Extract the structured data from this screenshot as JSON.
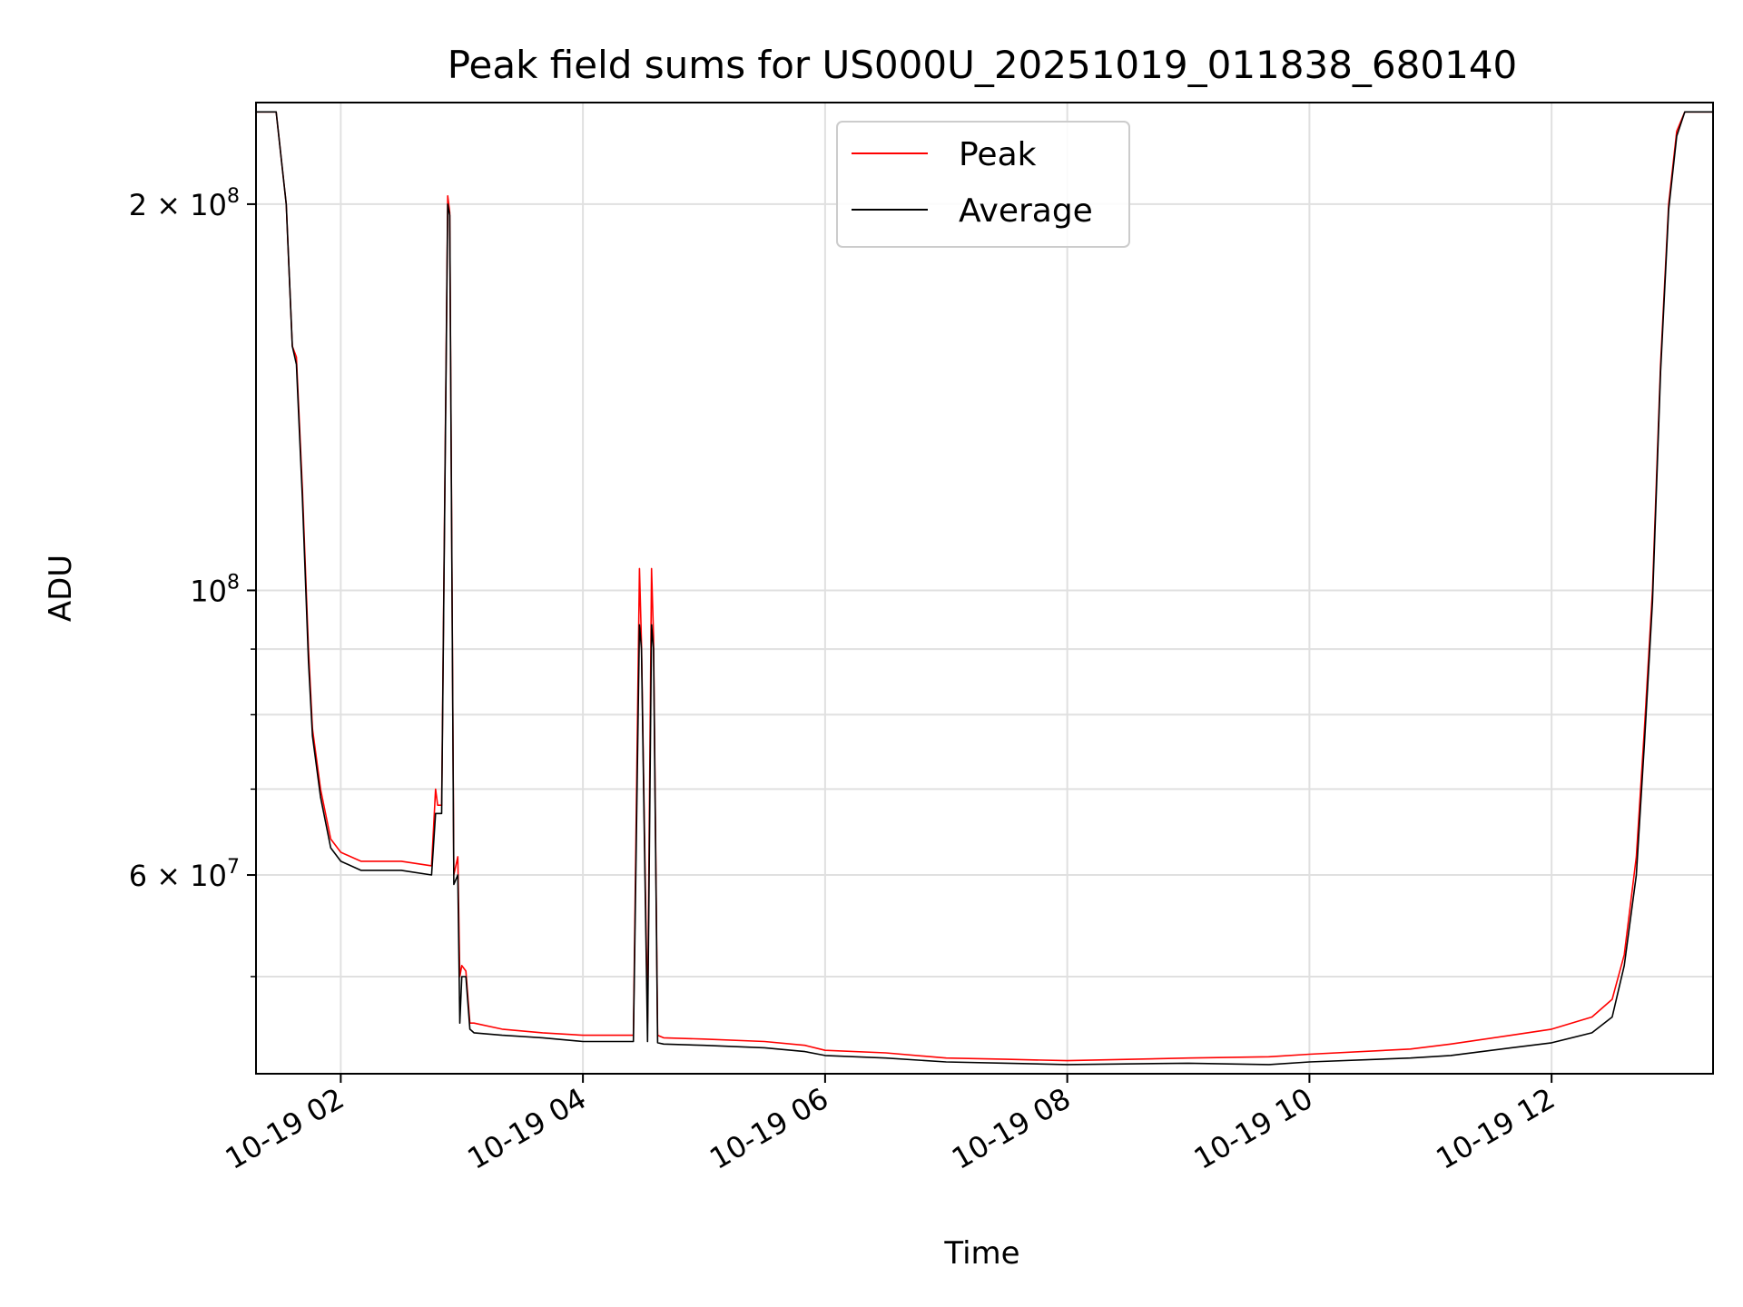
{
  "chart_data": {
    "type": "line",
    "title": "Peak field sums for US000U_20251019_011838_680140",
    "xlabel": "Time",
    "ylabel": "ADU",
    "yscale": "log",
    "xlim": [
      "2025-10-19T01:18",
      "2025-10-19T13:20"
    ],
    "ylim": [
      42000000,
      240000000
    ],
    "x_ticks": [
      {
        "label": "10-19 02",
        "value": "2025-10-19T02:00"
      },
      {
        "label": "10-19 04",
        "value": "2025-10-19T04:00"
      },
      {
        "label": "10-19 06",
        "value": "2025-10-19T06:00"
      },
      {
        "label": "10-19 08",
        "value": "2025-10-19T08:00"
      },
      {
        "label": "10-19 10",
        "value": "2025-10-19T10:00"
      },
      {
        "label": "10-19 12",
        "value": "2025-10-19T12:00"
      }
    ],
    "y_major_ticks": [
      {
        "value": 200000000,
        "base": "2 × 10",
        "exp": "8"
      },
      {
        "value": 100000000,
        "base": "10",
        "exp": "8"
      },
      {
        "value": 60000000,
        "base": "6 × 10",
        "exp": "7"
      }
    ],
    "y_minor_ticks": [
      50000000,
      70000000,
      80000000,
      90000000
    ],
    "grid": true,
    "legend": {
      "placement": "upper center"
    },
    "series": [
      {
        "name": "Peak",
        "color": "#ff0000",
        "x": [
          "2025-10-19T01:18",
          "2025-10-19T01:28",
          "2025-10-19T01:33",
          "2025-10-19T01:36",
          "2025-10-19T01:38",
          "2025-10-19T01:41",
          "2025-10-19T01:44",
          "2025-10-19T01:46",
          "2025-10-19T01:50",
          "2025-10-19T01:55",
          "2025-10-19T02:00",
          "2025-10-19T02:10",
          "2025-10-19T02:30",
          "2025-10-19T02:45",
          "2025-10-19T02:47",
          "2025-10-19T02:48",
          "2025-10-19T02:50",
          "2025-10-19T02:53",
          "2025-10-19T02:54",
          "2025-10-19T02:56",
          "2025-10-19T02:58",
          "2025-10-19T02:59",
          "2025-10-19T03:00",
          "2025-10-19T03:02",
          "2025-10-19T03:04",
          "2025-10-19T03:06",
          "2025-10-19T03:20",
          "2025-10-19T03:40",
          "2025-10-19T04:00",
          "2025-10-19T04:25",
          "2025-10-19T04:28",
          "2025-10-19T04:29",
          "2025-10-19T04:32",
          "2025-10-19T04:34",
          "2025-10-19T04:35",
          "2025-10-19T04:37",
          "2025-10-19T04:40",
          "2025-10-19T05:00",
          "2025-10-19T05:30",
          "2025-10-19T05:50",
          "2025-10-19T06:00",
          "2025-10-19T06:30",
          "2025-10-19T07:00",
          "2025-10-19T07:30",
          "2025-10-19T08:00",
          "2025-10-19T09:00",
          "2025-10-19T09:40",
          "2025-10-19T10:00",
          "2025-10-19T10:50",
          "2025-10-19T11:10",
          "2025-10-19T11:40",
          "2025-10-19T12:00",
          "2025-10-19T12:20",
          "2025-10-19T12:30",
          "2025-10-19T12:36",
          "2025-10-19T12:42",
          "2025-10-19T12:46",
          "2025-10-19T12:50",
          "2025-10-19T12:54",
          "2025-10-19T12:58",
          "2025-10-19T13:02",
          "2025-10-19T13:06",
          "2025-10-19T13:10",
          "2025-10-19T13:20"
        ],
        "values": [
          236000000,
          236000000,
          200000000,
          155000000,
          152000000,
          120000000,
          90000000,
          78000000,
          70000000,
          64000000,
          62500000,
          61500000,
          61500000,
          61000000,
          70000000,
          68000000,
          68000000,
          203000000,
          197000000,
          60000000,
          62000000,
          50000000,
          51000000,
          50500000,
          46000000,
          46000000,
          45500000,
          45200000,
          45000000,
          45000000,
          104000000,
          91000000,
          46000000,
          104000000,
          92000000,
          45000000,
          44800000,
          44700000,
          44500000,
          44200000,
          43800000,
          43600000,
          43200000,
          43100000,
          43000000,
          43200000,
          43300000,
          43500000,
          43900000,
          44300000,
          45000000,
          45500000,
          46500000,
          48000000,
          52000000,
          62000000,
          78000000,
          100000000,
          150000000,
          200000000,
          228000000,
          236000000,
          236000000,
          236000000
        ]
      },
      {
        "name": "Average",
        "color": "#000000",
        "x": [
          "2025-10-19T01:18",
          "2025-10-19T01:28",
          "2025-10-19T01:33",
          "2025-10-19T01:36",
          "2025-10-19T01:38",
          "2025-10-19T01:41",
          "2025-10-19T01:44",
          "2025-10-19T01:46",
          "2025-10-19T01:50",
          "2025-10-19T01:55",
          "2025-10-19T02:00",
          "2025-10-19T02:10",
          "2025-10-19T02:30",
          "2025-10-19T02:45",
          "2025-10-19T02:47",
          "2025-10-19T02:48",
          "2025-10-19T02:50",
          "2025-10-19T02:53",
          "2025-10-19T02:54",
          "2025-10-19T02:56",
          "2025-10-19T02:58",
          "2025-10-19T02:59",
          "2025-10-19T03:00",
          "2025-10-19T03:02",
          "2025-10-19T03:04",
          "2025-10-19T03:06",
          "2025-10-19T03:20",
          "2025-10-19T03:40",
          "2025-10-19T04:00",
          "2025-10-19T04:25",
          "2025-10-19T04:28",
          "2025-10-19T04:29",
          "2025-10-19T04:32",
          "2025-10-19T04:34",
          "2025-10-19T04:35",
          "2025-10-19T04:37",
          "2025-10-19T04:40",
          "2025-10-19T05:00",
          "2025-10-19T05:30",
          "2025-10-19T05:50",
          "2025-10-19T06:00",
          "2025-10-19T06:30",
          "2025-10-19T07:00",
          "2025-10-19T07:30",
          "2025-10-19T08:00",
          "2025-10-19T09:00",
          "2025-10-19T09:40",
          "2025-10-19T10:00",
          "2025-10-19T10:50",
          "2025-10-19T11:10",
          "2025-10-19T11:40",
          "2025-10-19T12:00",
          "2025-10-19T12:20",
          "2025-10-19T12:30",
          "2025-10-19T12:36",
          "2025-10-19T12:42",
          "2025-10-19T12:46",
          "2025-10-19T12:50",
          "2025-10-19T12:54",
          "2025-10-19T12:58",
          "2025-10-19T13:02",
          "2025-10-19T13:06",
          "2025-10-19T13:10",
          "2025-10-19T13:20"
        ],
        "values": [
          236000000,
          236000000,
          200000000,
          155000000,
          150000000,
          118000000,
          88000000,
          77000000,
          69000000,
          63000000,
          61500000,
          60500000,
          60500000,
          60000000,
          67000000,
          67000000,
          67000000,
          200000000,
          196000000,
          59000000,
          60000000,
          46000000,
          50000000,
          50000000,
          45500000,
          45200000,
          45000000,
          44800000,
          44500000,
          44500000,
          94000000,
          90000000,
          44500000,
          94000000,
          90000000,
          44400000,
          44300000,
          44200000,
          44000000,
          43700000,
          43400000,
          43200000,
          42900000,
          42800000,
          42700000,
          42800000,
          42700000,
          42900000,
          43200000,
          43400000,
          44000000,
          44400000,
          45200000,
          46500000,
          51000000,
          60000000,
          76000000,
          98000000,
          148000000,
          198000000,
          226000000,
          236000000,
          236000000,
          236000000
        ]
      }
    ]
  }
}
